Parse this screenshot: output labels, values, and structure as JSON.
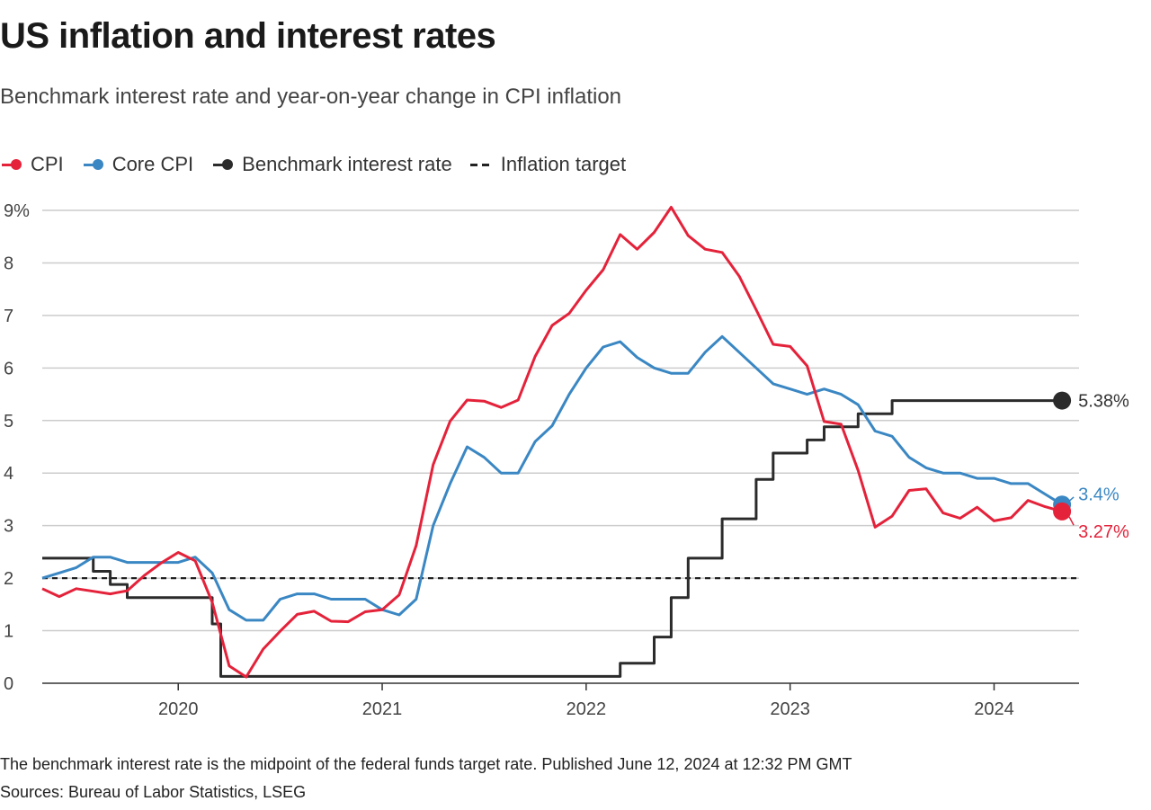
{
  "header": {
    "title": "US inflation and interest rates",
    "subtitle": "Benchmark interest rate and year-on-year change in CPI inflation"
  },
  "legend": [
    {
      "label": "CPI",
      "color": "#e4223a",
      "kind": "dot-line"
    },
    {
      "label": "Core CPI",
      "color": "#3a87c3",
      "kind": "dot-line"
    },
    {
      "label": "Benchmark interest rate",
      "color": "#2b2b2b",
      "kind": "dot-line"
    },
    {
      "label": "Inflation target",
      "color": "#222222",
      "kind": "dashed"
    }
  ],
  "footer": {
    "note": "The benchmark interest rate is the midpoint of the federal funds target rate. Published June 12, 2024 at 12:32 PM GMT",
    "source": "Sources: Bureau of Labor Statistics, LSEG"
  },
  "chart_data": {
    "type": "line",
    "title": "US inflation and interest rates",
    "subtitle": "Benchmark interest rate and year-on-year change in CPI inflation",
    "xlabel": "",
    "ylabel": "",
    "x_range": [
      "2019-05",
      "2024-06"
    ],
    "x_ticks": [
      {
        "label": "2020",
        "date": "2020-01"
      },
      {
        "label": "2021",
        "date": "2021-01"
      },
      {
        "label": "2022",
        "date": "2022-01"
      },
      {
        "label": "2023",
        "date": "2023-01"
      },
      {
        "label": "2024",
        "date": "2024-01"
      }
    ],
    "ylim": [
      0,
      9
    ],
    "y_ticks": [
      {
        "value": 0,
        "label": "0"
      },
      {
        "value": 1,
        "label": "1"
      },
      {
        "value": 2,
        "label": "2"
      },
      {
        "value": 3,
        "label": "3"
      },
      {
        "value": 4,
        "label": "4"
      },
      {
        "value": 5,
        "label": "5"
      },
      {
        "value": 6,
        "label": "6"
      },
      {
        "value": 7,
        "label": "7"
      },
      {
        "value": 8,
        "label": "8"
      },
      {
        "value": 9,
        "label": "9%"
      }
    ],
    "grid": true,
    "legend_position": "top-left",
    "target": {
      "name": "Inflation target",
      "value": 2,
      "color": "#222222",
      "style": "dashed"
    },
    "series": [
      {
        "name": "CPI",
        "color": "#e4223a",
        "step": false,
        "end_label": "3.27%",
        "points": [
          [
            "2019-05",
            1.8
          ],
          [
            "2019-06",
            1.65
          ],
          [
            "2019-07",
            1.8
          ],
          [
            "2019-08",
            1.75
          ],
          [
            "2019-09",
            1.7
          ],
          [
            "2019-10",
            1.76
          ],
          [
            "2019-11",
            2.05
          ],
          [
            "2019-12",
            2.29
          ],
          [
            "2020-01",
            2.49
          ],
          [
            "2020-02",
            2.33
          ],
          [
            "2020-03",
            1.54
          ],
          [
            "2020-04",
            0.33
          ],
          [
            "2020-05",
            0.12
          ],
          [
            "2020-06",
            0.65
          ],
          [
            "2020-07",
            0.99
          ],
          [
            "2020-08",
            1.31
          ],
          [
            "2020-09",
            1.37
          ],
          [
            "2020-10",
            1.18
          ],
          [
            "2020-11",
            1.17
          ],
          [
            "2020-12",
            1.36
          ],
          [
            "2021-01",
            1.4
          ],
          [
            "2021-02",
            1.68
          ],
          [
            "2021-03",
            2.62
          ],
          [
            "2021-04",
            4.16
          ],
          [
            "2021-05",
            4.99
          ],
          [
            "2021-06",
            5.39
          ],
          [
            "2021-07",
            5.37
          ],
          [
            "2021-08",
            5.25
          ],
          [
            "2021-09",
            5.39
          ],
          [
            "2021-10",
            6.22
          ],
          [
            "2021-11",
            6.81
          ],
          [
            "2021-12",
            7.04
          ],
          [
            "2022-01",
            7.48
          ],
          [
            "2022-02",
            7.87
          ],
          [
            "2022-03",
            8.54
          ],
          [
            "2022-04",
            8.26
          ],
          [
            "2022-05",
            8.58
          ],
          [
            "2022-06",
            9.06
          ],
          [
            "2022-07",
            8.52
          ],
          [
            "2022-08",
            8.26
          ],
          [
            "2022-09",
            8.2
          ],
          [
            "2022-10",
            7.75
          ],
          [
            "2022-11",
            7.11
          ],
          [
            "2022-12",
            6.45
          ],
          [
            "2023-01",
            6.41
          ],
          [
            "2023-02",
            6.04
          ],
          [
            "2023-03",
            4.98
          ],
          [
            "2023-04",
            4.93
          ],
          [
            "2023-05",
            4.05
          ],
          [
            "2023-06",
            2.97
          ],
          [
            "2023-07",
            3.18
          ],
          [
            "2023-08",
            3.67
          ],
          [
            "2023-09",
            3.7
          ],
          [
            "2023-10",
            3.24
          ],
          [
            "2023-11",
            3.14
          ],
          [
            "2023-12",
            3.35
          ],
          [
            "2024-01",
            3.09
          ],
          [
            "2024-02",
            3.15
          ],
          [
            "2024-03",
            3.48
          ],
          [
            "2024-04",
            3.36
          ],
          [
            "2024-05",
            3.27
          ]
        ]
      },
      {
        "name": "Core CPI",
        "color": "#3a87c3",
        "step": false,
        "end_label": "3.4%",
        "points": [
          [
            "2019-05",
            2.0
          ],
          [
            "2019-06",
            2.1
          ],
          [
            "2019-07",
            2.2
          ],
          [
            "2019-08",
            2.4
          ],
          [
            "2019-09",
            2.4
          ],
          [
            "2019-10",
            2.3
          ],
          [
            "2019-11",
            2.3
          ],
          [
            "2019-12",
            2.3
          ],
          [
            "2020-01",
            2.3
          ],
          [
            "2020-02",
            2.4
          ],
          [
            "2020-03",
            2.1
          ],
          [
            "2020-04",
            1.4
          ],
          [
            "2020-05",
            1.2
          ],
          [
            "2020-06",
            1.2
          ],
          [
            "2020-07",
            1.6
          ],
          [
            "2020-08",
            1.7
          ],
          [
            "2020-09",
            1.7
          ],
          [
            "2020-10",
            1.6
          ],
          [
            "2020-11",
            1.6
          ],
          [
            "2020-12",
            1.6
          ],
          [
            "2021-01",
            1.4
          ],
          [
            "2021-02",
            1.3
          ],
          [
            "2021-03",
            1.6
          ],
          [
            "2021-04",
            3.0
          ],
          [
            "2021-05",
            3.8
          ],
          [
            "2021-06",
            4.5
          ],
          [
            "2021-07",
            4.3
          ],
          [
            "2021-08",
            4.0
          ],
          [
            "2021-09",
            4.0
          ],
          [
            "2021-10",
            4.6
          ],
          [
            "2021-11",
            4.9
          ],
          [
            "2021-12",
            5.5
          ],
          [
            "2022-01",
            6.0
          ],
          [
            "2022-02",
            6.4
          ],
          [
            "2022-03",
            6.5
          ],
          [
            "2022-04",
            6.2
          ],
          [
            "2022-05",
            6.0
          ],
          [
            "2022-06",
            5.9
          ],
          [
            "2022-07",
            5.9
          ],
          [
            "2022-08",
            6.3
          ],
          [
            "2022-09",
            6.6
          ],
          [
            "2022-10",
            6.3
          ],
          [
            "2022-11",
            6.0
          ],
          [
            "2022-12",
            5.7
          ],
          [
            "2023-01",
            5.6
          ],
          [
            "2023-02",
            5.5
          ],
          [
            "2023-03",
            5.6
          ],
          [
            "2023-04",
            5.5
          ],
          [
            "2023-05",
            5.3
          ],
          [
            "2023-06",
            4.8
          ],
          [
            "2023-07",
            4.7
          ],
          [
            "2023-08",
            4.3
          ],
          [
            "2023-09",
            4.1
          ],
          [
            "2023-10",
            4.0
          ],
          [
            "2023-11",
            4.0
          ],
          [
            "2023-12",
            3.9
          ],
          [
            "2024-01",
            3.9
          ],
          [
            "2024-02",
            3.8
          ],
          [
            "2024-03",
            3.8
          ],
          [
            "2024-04",
            3.6
          ],
          [
            "2024-05",
            3.4
          ]
        ]
      },
      {
        "name": "Benchmark interest rate",
        "color": "#2b2b2b",
        "step": true,
        "end_label": "5.38%",
        "points": [
          [
            "2019-05",
            2.38
          ],
          [
            "2019-08",
            2.13
          ],
          [
            "2019-09",
            1.88
          ],
          [
            "2019-10",
            1.63
          ],
          [
            "2020-03",
            1.13
          ],
          [
            "2020-03-16",
            0.13
          ],
          [
            "2022-03",
            0.38
          ],
          [
            "2022-05",
            0.88
          ],
          [
            "2022-06",
            1.63
          ],
          [
            "2022-07",
            2.38
          ],
          [
            "2022-09",
            3.13
          ],
          [
            "2022-11",
            3.88
          ],
          [
            "2022-12",
            4.38
          ],
          [
            "2023-02",
            4.63
          ],
          [
            "2023-03",
            4.88
          ],
          [
            "2023-05",
            5.13
          ],
          [
            "2023-07",
            5.38
          ],
          [
            "2024-05",
            5.38
          ]
        ]
      }
    ]
  }
}
